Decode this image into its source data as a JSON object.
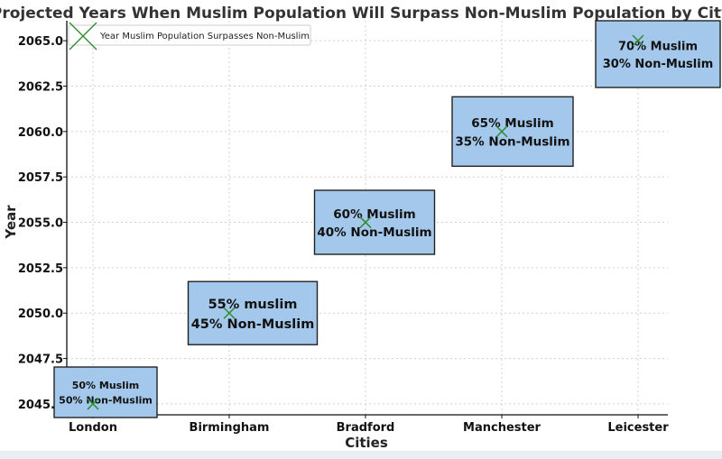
{
  "chart_data": {
    "type": "scatter",
    "title": "Projected Years When Muslim Population Will Surpass Non-Muslim Population by City",
    "xlabel": "Cities",
    "ylabel": "Year",
    "categories": [
      "London",
      "Birmingham",
      "Bradford",
      "Manchester",
      "Leicester"
    ],
    "ylim": [
      2044.4,
      2066.1
    ],
    "yticks": [
      "2045.0",
      "2047.5",
      "2050.0",
      "2052.5",
      "2055.0",
      "2057.5",
      "2060.0",
      "2062.5",
      "2065.0"
    ],
    "grid": true,
    "legend": {
      "position": "top-left",
      "entries": [
        "Year Muslim Population Surpasses Non-Muslim"
      ]
    },
    "series": [
      {
        "name": "Year Muslim Population Surpasses Non-Muslim",
        "values": [
          2045,
          2050,
          2055,
          2060,
          2065
        ]
      }
    ],
    "annotations": [
      {
        "category": "London",
        "year": 2045,
        "lines": [
          "50% Muslim",
          "50% Non-Muslim"
        ]
      },
      {
        "category": "Birmingham",
        "year": 2050,
        "lines": [
          "55% muslim",
          "45% Non-Muslim"
        ]
      },
      {
        "category": "Bradford",
        "year": 2055,
        "lines": [
          "60% Muslim",
          "40% Non-Muslim"
        ]
      },
      {
        "category": "Manchester",
        "year": 2060,
        "lines": [
          "65% Muslim",
          "35% Non-Muslim"
        ]
      },
      {
        "category": "Leicester",
        "year": 2065,
        "lines": [
          "70% Muslim",
          "30% Non-Muslim"
        ]
      }
    ],
    "colors": {
      "box_fill": "#a4c8eb",
      "box_border": "#222222",
      "marker": "#2e8b2e",
      "grid": "#d0d0d0"
    }
  }
}
